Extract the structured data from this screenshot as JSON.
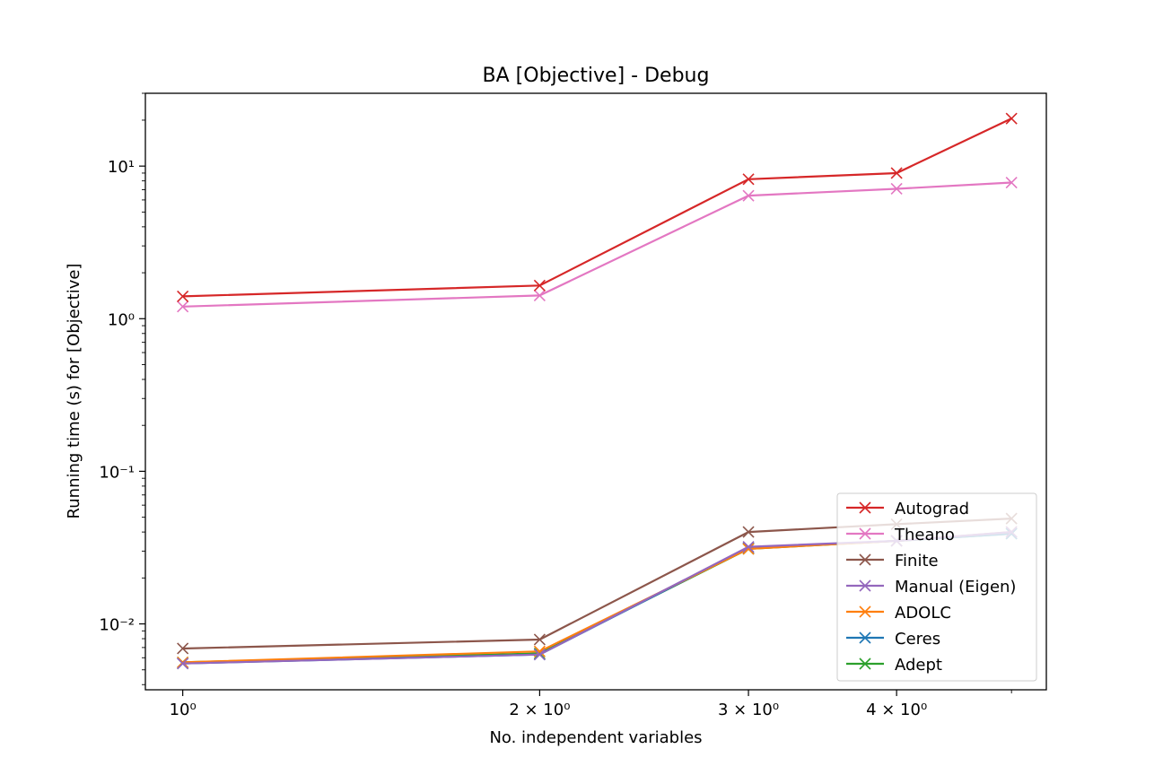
{
  "chart_data": {
    "type": "line",
    "title": "BA [Objective] - Debug",
    "xlabel": "No. independent variables",
    "ylabel": "Running time (s) for [Objective]",
    "xscale": "log",
    "yscale": "log",
    "x": [
      1,
      2,
      3,
      4,
      5
    ],
    "xlim": [
      0.93,
      5.35
    ],
    "ylim": [
      0.0037,
      30
    ],
    "xticks": [
      {
        "value": 1,
        "label": "10⁰"
      },
      {
        "value": 2,
        "label": "2 × 10⁰"
      },
      {
        "value": 3,
        "label": "3 × 10⁰"
      },
      {
        "value": 4,
        "label": "4 × 10⁰"
      }
    ],
    "yticks": [
      {
        "value": 0.01,
        "label": "10⁻²"
      },
      {
        "value": 0.1,
        "label": "10⁻¹"
      },
      {
        "value": 1,
        "label": "10⁰"
      },
      {
        "value": 10,
        "label": "10¹"
      }
    ],
    "marker": "x",
    "grid": false,
    "legend_position": "lower right",
    "series": [
      {
        "name": "Autograd",
        "color": "#d62728",
        "values": [
          1.4,
          1.65,
          8.2,
          9.0,
          20.5
        ]
      },
      {
        "name": "Theano",
        "color": "#e377c2",
        "values": [
          1.2,
          1.42,
          6.4,
          7.1,
          7.8
        ]
      },
      {
        "name": "Finite",
        "color": "#8c564b",
        "values": [
          0.0069,
          0.0079,
          0.04,
          0.045,
          0.049
        ]
      },
      {
        "name": "Manual (Eigen)",
        "color": "#9467bd",
        "values": [
          0.0055,
          0.0063,
          0.032,
          0.035,
          0.04
        ]
      },
      {
        "name": "ADOLC",
        "color": "#ff7f0e",
        "values": [
          0.0056,
          0.0066,
          0.031,
          0.035,
          0.04
        ]
      },
      {
        "name": "Ceres",
        "color": "#1f77b4",
        "values": [
          0.0055,
          0.0063,
          0.0315,
          0.035,
          0.039
        ]
      },
      {
        "name": "Adept",
        "color": "#2ca02c",
        "values": [
          0.0056,
          0.0064,
          0.031,
          0.035,
          0.039
        ]
      }
    ]
  }
}
